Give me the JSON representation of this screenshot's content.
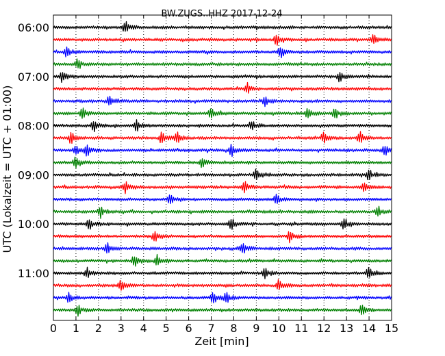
{
  "chart_data": {
    "type": "line",
    "title": "BW.ZUGS..HHZ 2017-12-24",
    "xlabel": "Zeit  [min]",
    "ylabel": "UTC (Lokalzeit = UTC + 01:00)",
    "xlim": [
      0,
      15
    ],
    "x_ticks": [
      "0",
      "1",
      "2",
      "3",
      "4",
      "5",
      "6",
      "7",
      "8",
      "9",
      "10",
      "11",
      "12",
      "13",
      "14",
      "15"
    ],
    "y_ticks": [
      "06:00",
      "07:00",
      "08:00",
      "09:00",
      "10:00",
      "11:00"
    ],
    "grid": true,
    "trace_interval_min": 15,
    "trace_colors": [
      "#000000",
      "#ff0000",
      "#0000ff",
      "#008000"
    ],
    "rows": [
      {
        "start": "06:00",
        "color": "#000000",
        "events": [
          3.2
        ]
      },
      {
        "start": "06:15",
        "color": "#ff0000",
        "events": [
          9.9,
          14.2
        ]
      },
      {
        "start": "06:30",
        "color": "#0000ff",
        "events": [
          0.6,
          10.1
        ]
      },
      {
        "start": "06:45",
        "color": "#008000",
        "events": [
          1.1
        ]
      },
      {
        "start": "07:00",
        "color": "#000000",
        "events": [
          0.4,
          12.7
        ]
      },
      {
        "start": "07:15",
        "color": "#ff0000",
        "events": [
          8.6
        ]
      },
      {
        "start": "07:30",
        "color": "#0000ff",
        "events": [
          2.5,
          9.4
        ]
      },
      {
        "start": "07:45",
        "color": "#008000",
        "events": [
          1.3,
          7.0,
          11.3,
          12.5
        ]
      },
      {
        "start": "08:00",
        "color": "#000000",
        "events": [
          1.8,
          3.7,
          8.8
        ]
      },
      {
        "start": "08:15",
        "color": "#ff0000",
        "events": [
          0.8,
          4.8,
          5.5,
          12.0,
          13.6
        ]
      },
      {
        "start": "08:30",
        "color": "#0000ff",
        "events": [
          1.0,
          1.5,
          7.9,
          14.7
        ]
      },
      {
        "start": "08:45",
        "color": "#008000",
        "events": [
          1.0,
          6.6
        ]
      },
      {
        "start": "09:00",
        "color": "#000000",
        "events": [
          9.0,
          14.0
        ]
      },
      {
        "start": "09:15",
        "color": "#ff0000",
        "events": [
          3.2,
          8.5,
          13.8
        ]
      },
      {
        "start": "09:30",
        "color": "#0000ff",
        "events": [
          5.2,
          9.9
        ]
      },
      {
        "start": "09:45",
        "color": "#008000",
        "events": [
          2.1,
          14.4
        ]
      },
      {
        "start": "10:00",
        "color": "#000000",
        "events": [
          1.6,
          7.9,
          12.9
        ]
      },
      {
        "start": "10:15",
        "color": "#ff0000",
        "events": [
          4.5,
          10.5
        ]
      },
      {
        "start": "10:30",
        "color": "#0000ff",
        "events": [
          2.4,
          8.4
        ]
      },
      {
        "start": "10:45",
        "color": "#008000",
        "events": [
          3.6,
          4.6
        ]
      },
      {
        "start": "11:00",
        "color": "#000000",
        "events": [
          1.5,
          9.4,
          14.0
        ]
      },
      {
        "start": "11:15",
        "color": "#ff0000",
        "events": [
          3.0,
          10.0
        ]
      },
      {
        "start": "11:30",
        "color": "#0000ff",
        "events": [
          0.7,
          7.1,
          7.7
        ]
      },
      {
        "start": "11:45",
        "color": "#008000",
        "events": [
          1.1,
          13.7
        ]
      }
    ]
  }
}
